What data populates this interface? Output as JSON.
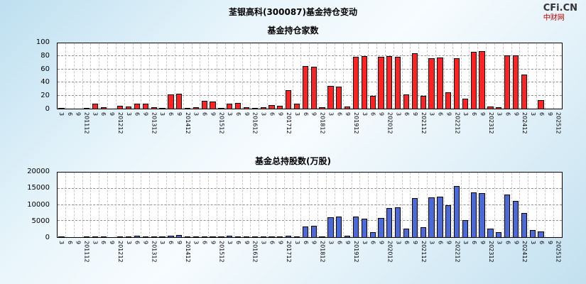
{
  "header": {
    "title": "荃银高科(300087)基金持仓变动",
    "logo_line1": "CFi.CN",
    "logo_line2": "中财网"
  },
  "colors": {
    "bar_red": "#ff2222",
    "bar_blue": "#4a6ad8",
    "bar_border": "#000000",
    "hgrid": "#8f8f8f",
    "vgrid": "#c9c9c9",
    "plot_bg": "#ffffff"
  },
  "chart_data": [
    {
      "type": "bar",
      "title": "基金持仓家数",
      "xlabel": "",
      "ylabel": "",
      "ylim": [
        0,
        100
      ],
      "yticks": [
        0,
        20,
        40,
        60,
        80,
        100
      ],
      "grid": true,
      "legend": "none",
      "bar_color": "#ff2222",
      "x_labels": [
        "3",
        "6",
        "9",
        "201112",
        "3",
        "6",
        "9",
        "201212",
        "3",
        "6",
        "9",
        "201312",
        "3",
        "6",
        "9",
        "201412",
        "3",
        "6",
        "9",
        "201512",
        "3",
        "6",
        "9",
        "201612",
        "3",
        "6",
        "9",
        "201712",
        "3",
        "6",
        "9",
        "201812",
        "3",
        "6",
        "9",
        "201912",
        "3",
        "6",
        "9",
        "202012",
        "3",
        "6",
        "9",
        "202112",
        "3",
        "6",
        "9",
        "202212",
        "3",
        "6",
        "9",
        "202312",
        "3",
        "6",
        "9",
        "202412",
        "3",
        "6",
        "9",
        "202512"
      ],
      "values": [
        1,
        0,
        0,
        1,
        8,
        2,
        0,
        4,
        3,
        8,
        8,
        2,
        1,
        22,
        23,
        1,
        2,
        12,
        11,
        1,
        8,
        9,
        2,
        1,
        2,
        5,
        4,
        28,
        8,
        65,
        64,
        2,
        35,
        34,
        3,
        79,
        80,
        20,
        79,
        80,
        79,
        22,
        85,
        20,
        77,
        78,
        25,
        77,
        15,
        87,
        88,
        3,
        2,
        82,
        81,
        52,
        0,
        13,
        0,
        0
      ]
    },
    {
      "type": "bar",
      "title": "基金总持股数(万股)",
      "xlabel": "",
      "ylabel": "",
      "ylim": [
        0,
        20000
      ],
      "yticks": [
        0,
        5000,
        10000,
        15000,
        20000
      ],
      "grid": true,
      "legend": "none",
      "bar_color": "#4a6ad8",
      "x_labels": [
        "3",
        "6",
        "9",
        "201112",
        "3",
        "6",
        "9",
        "201212",
        "3",
        "6",
        "9",
        "201312",
        "3",
        "6",
        "9",
        "201412",
        "3",
        "6",
        "9",
        "201512",
        "3",
        "6",
        "9",
        "201612",
        "3",
        "6",
        "9",
        "201712",
        "3",
        "6",
        "9",
        "201812",
        "3",
        "6",
        "9",
        "201912",
        "3",
        "6",
        "9",
        "202012",
        "3",
        "6",
        "9",
        "202112",
        "3",
        "6",
        "9",
        "202212",
        "3",
        "6",
        "9",
        "202312",
        "3",
        "6",
        "9",
        "202412",
        "3",
        "6",
        "9",
        "202512"
      ],
      "values": [
        50,
        0,
        0,
        80,
        300,
        100,
        0,
        200,
        150,
        350,
        300,
        100,
        80,
        350,
        700,
        100,
        120,
        250,
        200,
        80,
        350,
        300,
        100,
        80,
        100,
        250,
        200,
        350,
        300,
        3400,
        3500,
        200,
        6200,
        6400,
        400,
        6300,
        5700,
        1500,
        5900,
        9000,
        9300,
        2600,
        12200,
        3100,
        12400,
        12600,
        9900,
        15800,
        5200,
        13900,
        13600,
        2600,
        1600,
        13100,
        11300,
        7400,
        2300,
        1800,
        0,
        0
      ]
    }
  ]
}
